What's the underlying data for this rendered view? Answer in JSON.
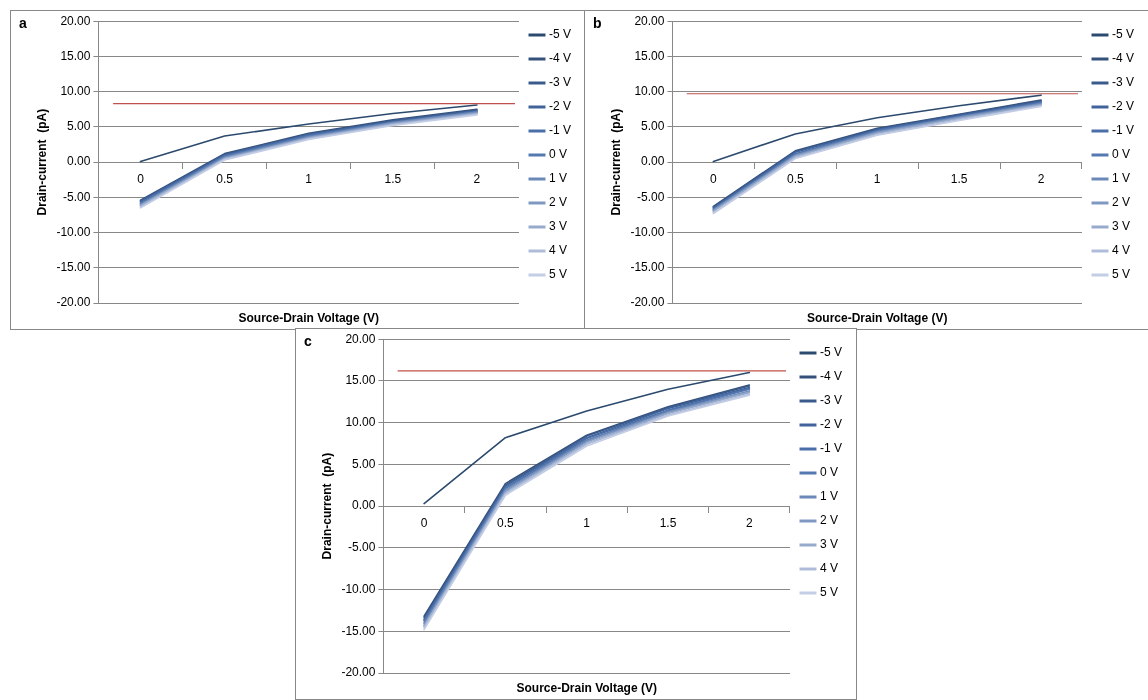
{
  "chart_data": [
    {
      "type": "line",
      "title": "a",
      "xlabel": "Source-Drain Voltage (V)",
      "ylabel": "Drain-current  (pA)",
      "categories": [
        "0",
        "0.5",
        "1",
        "1.5",
        "2"
      ],
      "ylim": [
        -20,
        20
      ],
      "yticks": [
        {
          "value": -20,
          "label": "-20.00"
        },
        {
          "value": -15,
          "label": "-15.00"
        },
        {
          "value": -10,
          "label": "-10.00"
        },
        {
          "value": -5,
          "label": "-5.00"
        },
        {
          "value": 0,
          "label": "0.00"
        },
        {
          "value": 5,
          "label": "5.00"
        },
        {
          "value": 10,
          "label": "10.00"
        },
        {
          "value": 15,
          "label": "15.00"
        },
        {
          "value": 20,
          "label": "20.00"
        }
      ],
      "grid": "y",
      "legend": "right",
      "marker": "none",
      "line_style": "solid",
      "ref_lines": [
        {
          "axis": "y",
          "value": 8.3,
          "color": "#c0504d"
        }
      ],
      "series": [
        {
          "name": "-5 V",
          "color": "#2c4a6e",
          "values": [
            0.1,
            3.7,
            5.4,
            6.9,
            8.1
          ]
        },
        {
          "name": "-4 V",
          "color": "#35507a",
          "values": [
            -5.4,
            1.2,
            4.1,
            6.0,
            7.5
          ]
        },
        {
          "name": "-3 V",
          "color": "#3a5a8c",
          "values": [
            -5.5,
            1.1,
            4.0,
            5.9,
            7.4
          ]
        },
        {
          "name": "-2 V",
          "color": "#41639a",
          "values": [
            -5.6,
            1.0,
            3.9,
            5.8,
            7.3
          ]
        },
        {
          "name": "-1 V",
          "color": "#4a6fa8",
          "values": [
            -5.8,
            0.9,
            3.8,
            5.7,
            7.2
          ]
        },
        {
          "name": "0 V",
          "color": "#5478b0",
          "values": [
            -5.9,
            0.8,
            3.7,
            5.6,
            7.1
          ]
        },
        {
          "name": "1 V",
          "color": "#6a88b8",
          "values": [
            -6.0,
            0.7,
            3.6,
            5.6,
            7.1
          ]
        },
        {
          "name": "2 V",
          "color": "#7f98c2",
          "values": [
            -6.1,
            0.6,
            3.5,
            5.5,
            7.0
          ]
        },
        {
          "name": "3 V",
          "color": "#96aacb",
          "values": [
            -6.2,
            0.5,
            3.4,
            5.4,
            6.9
          ]
        },
        {
          "name": "4 V",
          "color": "#aebcd9",
          "values": [
            -6.4,
            0.4,
            3.3,
            5.3,
            6.8
          ]
        },
        {
          "name": "5 V",
          "color": "#c3cde6",
          "values": [
            -6.5,
            0.3,
            3.2,
            5.2,
            6.7
          ]
        }
      ]
    },
    {
      "type": "line",
      "title": "b",
      "xlabel": "Source-Drain Voltage (V)",
      "ylabel": "Drain-current  (pA)",
      "categories": [
        "0",
        "0.5",
        "1",
        "1.5",
        "2"
      ],
      "ylim": [
        -20,
        20
      ],
      "yticks": [
        {
          "value": -20,
          "label": "-20.00"
        },
        {
          "value": -15,
          "label": "-15.00"
        },
        {
          "value": -10,
          "label": "-10.00"
        },
        {
          "value": -5,
          "label": "-5.00"
        },
        {
          "value": 0,
          "label": "0.00"
        },
        {
          "value": 5,
          "label": "5.00"
        },
        {
          "value": 10,
          "label": "10.00"
        },
        {
          "value": 15,
          "label": "15.00"
        },
        {
          "value": 20,
          "label": "20.00"
        }
      ],
      "grid": "y",
      "legend": "right",
      "marker": "none",
      "line_style": "solid",
      "ref_lines": [
        {
          "axis": "y",
          "value": 9.7,
          "color": "#c0504d"
        }
      ],
      "series": [
        {
          "name": "-5 V",
          "color": "#2c4a6e",
          "values": [
            0.1,
            4.0,
            6.3,
            8.0,
            9.5
          ]
        },
        {
          "name": "-4 V",
          "color": "#35507a",
          "values": [
            -6.3,
            1.6,
            4.8,
            6.8,
            8.8
          ]
        },
        {
          "name": "-3 V",
          "color": "#3a5a8c",
          "values": [
            -6.4,
            1.5,
            4.7,
            6.7,
            8.7
          ]
        },
        {
          "name": "-2 V",
          "color": "#41639a",
          "values": [
            -6.5,
            1.4,
            4.6,
            6.6,
            8.6
          ]
        },
        {
          "name": "-1 V",
          "color": "#4a6fa8",
          "values": [
            -6.6,
            1.2,
            4.5,
            6.5,
            8.5
          ]
        },
        {
          "name": "0 V",
          "color": "#5478b0",
          "values": [
            -6.7,
            1.1,
            4.4,
            6.4,
            8.4
          ]
        },
        {
          "name": "1 V",
          "color": "#6a88b8",
          "values": [
            -6.8,
            1.0,
            4.3,
            6.4,
            8.3
          ]
        },
        {
          "name": "2 V",
          "color": "#7f98c2",
          "values": [
            -6.9,
            0.9,
            4.2,
            6.3,
            8.2
          ]
        },
        {
          "name": "3 V",
          "color": "#96aacb",
          "values": [
            -7.0,
            0.8,
            4.1,
            6.2,
            8.1
          ]
        },
        {
          "name": "4 V",
          "color": "#aebcd9",
          "values": [
            -7.2,
            0.6,
            3.9,
            6.0,
            8.0
          ]
        },
        {
          "name": "5 V",
          "color": "#c3cde6",
          "values": [
            -7.3,
            0.5,
            3.8,
            5.9,
            7.9
          ]
        }
      ]
    },
    {
      "type": "line",
      "title": "c",
      "xlabel": "Source-Drain Voltage (V)",
      "ylabel": "Drain-current  (pA)",
      "categories": [
        "0",
        "0.5",
        "1",
        "1.5",
        "2"
      ],
      "ylim": [
        -20,
        20
      ],
      "yticks": [
        {
          "value": -20,
          "label": "-20.00"
        },
        {
          "value": -15,
          "label": "-15.00"
        },
        {
          "value": -10,
          "label": "-10.00"
        },
        {
          "value": -5,
          "label": "-5.00"
        },
        {
          "value": 0,
          "label": "0.00"
        },
        {
          "value": 5,
          "label": "5.00"
        },
        {
          "value": 10,
          "label": "10.00"
        },
        {
          "value": 15,
          "label": "15.00"
        },
        {
          "value": 20,
          "label": "20.00"
        }
      ],
      "grid": "y",
      "legend": "right",
      "marker": "none",
      "line_style": "solid",
      "ref_lines": [
        {
          "axis": "y",
          "value": 16.2,
          "color": "#c0504d"
        }
      ],
      "series": [
        {
          "name": "-5 V",
          "color": "#2c4a6e",
          "values": [
            0.3,
            8.2,
            11.4,
            14.0,
            16.0
          ]
        },
        {
          "name": "-4 V",
          "color": "#35507a",
          "values": [
            -13.2,
            2.7,
            8.5,
            11.9,
            14.5
          ]
        },
        {
          "name": "-3 V",
          "color": "#3a5a8c",
          "values": [
            -13.4,
            2.5,
            8.4,
            11.8,
            14.4
          ]
        },
        {
          "name": "-2 V",
          "color": "#41639a",
          "values": [
            -13.6,
            2.4,
            8.2,
            11.7,
            14.2
          ]
        },
        {
          "name": "-1 V",
          "color": "#4a6fa8",
          "values": [
            -13.7,
            2.2,
            8.1,
            11.5,
            14.1
          ]
        },
        {
          "name": "0 V",
          "color": "#5478b0",
          "values": [
            -13.9,
            2.1,
            7.9,
            11.4,
            14.0
          ]
        },
        {
          "name": "1 V",
          "color": "#6a88b8",
          "values": [
            -14.1,
            1.9,
            7.8,
            11.3,
            13.8
          ]
        },
        {
          "name": "2 V",
          "color": "#7f98c2",
          "values": [
            -14.3,
            1.8,
            7.7,
            11.2,
            13.7
          ]
        },
        {
          "name": "3 V",
          "color": "#96aacb",
          "values": [
            -14.4,
            1.6,
            7.5,
            11.1,
            13.6
          ]
        },
        {
          "name": "4 V",
          "color": "#aebcd9",
          "values": [
            -14.6,
            1.5,
            7.4,
            10.9,
            13.4
          ]
        },
        {
          "name": "5 V",
          "color": "#c3cde6",
          "values": [
            -14.8,
            1.3,
            7.2,
            10.8,
            13.3
          ]
        }
      ]
    }
  ]
}
